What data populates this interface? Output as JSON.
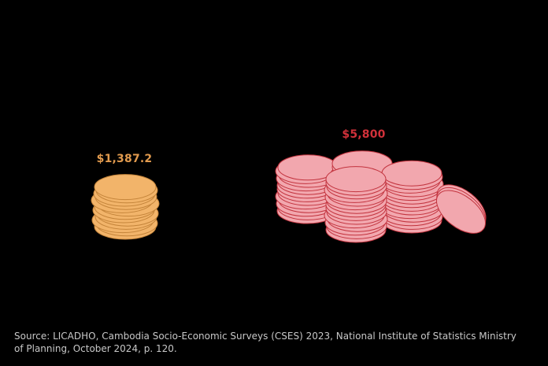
{
  "chart_data": {
    "type": "bar",
    "categories": [
      "",
      ""
    ],
    "values": [
      1387.2,
      5800
    ],
    "value_labels": [
      "$1,387.2",
      "$5,800"
    ],
    "colors": {
      "series_a_fill": "#F2B46A",
      "series_a_stroke": "#C4843A",
      "series_a_label": "#E19A4E",
      "series_b_fill": "#F2A7AE",
      "series_b_stroke": "#C2333E",
      "series_b_label": "#D1313A",
      "background": "#000000"
    },
    "marks": "coin stacks"
  },
  "source": "Source: LICADHO, Cambodia Socio-Economic Surveys (CSES) 2023, National Institute of Statistics Ministry of Planning, October 2024, p. 120."
}
